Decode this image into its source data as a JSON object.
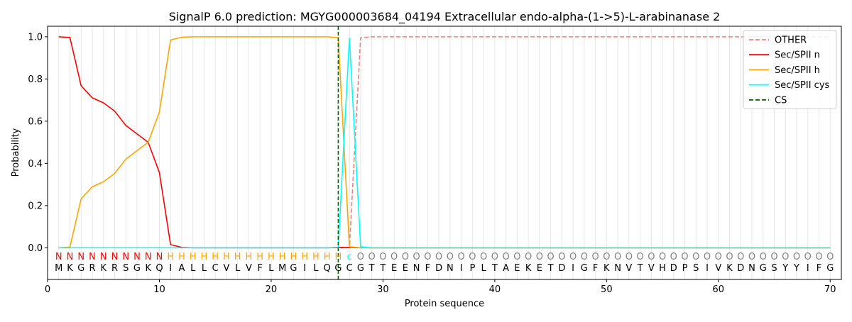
{
  "chart_data": {
    "type": "line",
    "title": "SignalP 6.0 prediction: MGYG000003684_04194 Extracellular endo-alpha-(1->5)-L-arabinanase 2",
    "xlabel": "Protein sequence",
    "ylabel": "Probability",
    "xlim": [
      0,
      71
    ],
    "ylim": [
      -0.15,
      1.05
    ],
    "x_ticks": [
      0,
      10,
      20,
      30,
      40,
      50,
      60,
      70
    ],
    "y_ticks": [
      0.0,
      0.2,
      0.4,
      0.6,
      0.8,
      1.0
    ],
    "x_tick_labels": [
      "0",
      "10",
      "20",
      "30",
      "40",
      "50",
      "60",
      "70"
    ],
    "y_tick_labels": [
      "0.0",
      "0.2",
      "0.4",
      "0.6",
      "0.8",
      "1.0"
    ],
    "grid": "vertical lines at each residue",
    "legend_position": "top-right",
    "sequence": [
      "M",
      "K",
      "G",
      "R",
      "K",
      "R",
      "S",
      "G",
      "K",
      "Q",
      "I",
      "A",
      "L",
      "L",
      "C",
      "V",
      "L",
      "V",
      "F",
      "L",
      "M",
      "G",
      "I",
      "L",
      "Q",
      "G",
      "C",
      "G",
      "T",
      "T",
      "E",
      "E",
      "N",
      "F",
      "D",
      "N",
      "I",
      "P",
      "L",
      "T",
      "A",
      "E",
      "K",
      "E",
      "T",
      "D",
      "I",
      "G",
      "F",
      "K",
      "N",
      "V",
      "T",
      "V",
      "H",
      "D",
      "P",
      "S",
      "I",
      "V",
      "K",
      "D",
      "N",
      "G",
      "S",
      "Y",
      "Y",
      "I",
      "F",
      "G"
    ],
    "region_labels": [
      "N",
      "N",
      "N",
      "N",
      "N",
      "N",
      "N",
      "N",
      "N",
      "N",
      "H",
      "H",
      "H",
      "H",
      "H",
      "H",
      "H",
      "H",
      "H",
      "H",
      "H",
      "H",
      "H",
      "H",
      "H",
      "H",
      "c",
      "O",
      "O",
      "O",
      "O",
      "O",
      "O",
      "O",
      "O",
      "O",
      "O",
      "O",
      "O",
      "O",
      "O",
      "O",
      "O",
      "O",
      "O",
      "O",
      "O",
      "O",
      "O",
      "O",
      "O",
      "O",
      "O",
      "O",
      "O",
      "O",
      "O",
      "O",
      "O",
      "O",
      "O",
      "O",
      "O",
      "O",
      "O",
      "O",
      "O",
      "O",
      "O",
      "O"
    ],
    "region_colors": {
      "N": "#ff0000",
      "H": "#ffa500",
      "c": "#00ffff",
      "O": "#808080"
    },
    "cleavage_site": 26,
    "series": [
      {
        "name": "OTHER",
        "color": "#f08080",
        "dash": "dashed",
        "values": [
          0,
          0,
          0,
          0,
          0,
          0,
          0,
          0,
          0,
          0,
          0,
          0,
          0,
          0,
          0,
          0,
          0,
          0,
          0,
          0,
          0,
          0,
          0,
          0,
          0,
          0,
          0,
          0.995,
          1,
          1,
          1,
          1,
          1,
          1,
          1,
          1,
          1,
          1,
          1,
          1,
          1,
          1,
          1,
          1,
          1,
          1,
          1,
          1,
          1,
          1,
          1,
          1,
          1,
          1,
          1,
          1,
          1,
          1,
          1,
          1,
          1,
          1,
          1,
          1,
          1,
          1,
          1,
          1,
          1,
          1
        ]
      },
      {
        "name": "Sec/SPII n",
        "color": "#ff0000",
        "dash": "solid",
        "values": [
          1.0,
          0.997,
          0.768,
          0.711,
          0.687,
          0.648,
          0.58,
          0.54,
          0.5,
          0.357,
          0.015,
          0.002,
          0,
          0,
          0,
          0,
          0,
          0,
          0,
          0,
          0,
          0,
          0,
          0,
          0,
          0.002,
          0.002,
          0,
          0,
          0,
          0,
          0,
          0,
          0,
          0,
          0,
          0,
          0,
          0,
          0,
          0,
          0,
          0,
          0,
          0,
          0,
          0,
          0,
          0,
          0,
          0,
          0,
          0,
          0,
          0,
          0,
          0,
          0,
          0,
          0,
          0,
          0,
          0,
          0,
          0,
          0,
          0,
          0,
          0,
          0
        ]
      },
      {
        "name": "Sec/SPII h",
        "color": "#ffa500",
        "dash": "solid",
        "values": [
          0,
          0.003,
          0.232,
          0.289,
          0.313,
          0.352,
          0.42,
          0.46,
          0.5,
          0.643,
          0.985,
          0.998,
          1,
          1,
          1,
          1,
          1,
          1,
          1,
          1,
          1,
          1,
          1,
          1,
          1,
          0.996,
          0.005,
          0,
          0,
          0,
          0,
          0,
          0,
          0,
          0,
          0,
          0,
          0,
          0,
          0,
          0,
          0,
          0,
          0,
          0,
          0,
          0,
          0,
          0,
          0,
          0,
          0,
          0,
          0,
          0,
          0,
          0,
          0,
          0,
          0,
          0,
          0,
          0,
          0,
          0,
          0,
          0,
          0,
          0,
          0
        ]
      },
      {
        "name": "Sec/SPII cys",
        "color": "#00ffff",
        "dash": "solid",
        "values": [
          0,
          0,
          0,
          0,
          0,
          0,
          0,
          0,
          0,
          0,
          0,
          0,
          0,
          0,
          0,
          0,
          0,
          0,
          0,
          0,
          0,
          0,
          0,
          0,
          0,
          0,
          0.993,
          0.005,
          0,
          0,
          0,
          0,
          0,
          0,
          0,
          0,
          0,
          0,
          0,
          0,
          0,
          0,
          0,
          0,
          0,
          0,
          0,
          0,
          0,
          0,
          0,
          0,
          0,
          0,
          0,
          0,
          0,
          0,
          0,
          0,
          0,
          0,
          0,
          0,
          0,
          0,
          0,
          0,
          0,
          0
        ]
      },
      {
        "name": "CS",
        "color": "#006400",
        "dash": "dashed",
        "values": []
      }
    ]
  }
}
